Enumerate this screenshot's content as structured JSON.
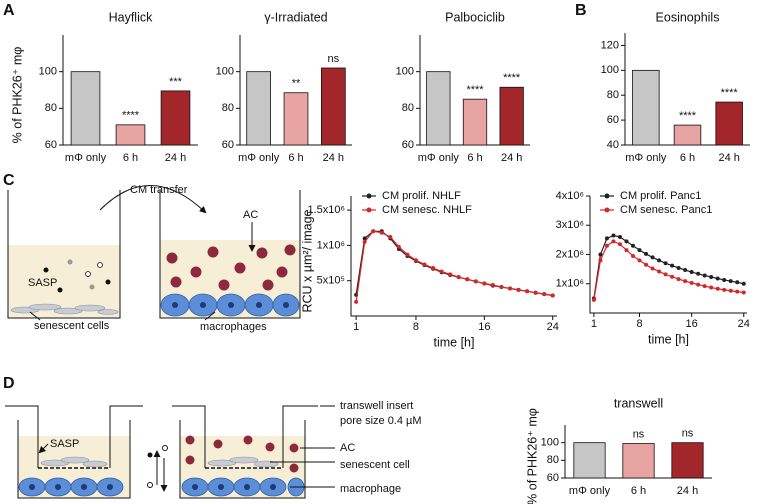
{
  "panel_labels": [
    "A",
    "B",
    "C",
    "D"
  ],
  "diagram_c": {
    "arrow_label": "CM transfer",
    "ac": "AC",
    "sasp": "SASP",
    "senescent": "senescent cells",
    "macrophages": "macrophages"
  },
  "diagram_d": {
    "sasp": "SASP",
    "labels": [
      "transwell insert",
      "pore size 0.4 µM",
      "AC",
      "senescent cell",
      "macrophage"
    ]
  },
  "chart_data": [
    {
      "type": "bar",
      "title": "Hayflick",
      "ylabel": "% of PHK26⁺ mφ",
      "categories": [
        "mΦ only",
        "6 h",
        "24 h"
      ],
      "values": [
        100,
        71,
        89.5
      ],
      "annotations": [
        null,
        "****",
        "***"
      ],
      "colors": [
        "#c6c6c6",
        "#e8a3a3",
        "#a3262a"
      ],
      "ylim": [
        60,
        120
      ],
      "yticks": [
        60,
        80,
        100
      ]
    },
    {
      "type": "bar",
      "title": "γ-Irradiated",
      "categories": [
        "mΦ only",
        "6 h",
        "24 h"
      ],
      "values": [
        100,
        88.5,
        102
      ],
      "annotations": [
        null,
        "**",
        "ns"
      ],
      "colors": [
        "#c6c6c6",
        "#e8a3a3",
        "#a3262a"
      ],
      "ylim": [
        60,
        120
      ],
      "yticks": [
        60,
        80,
        100
      ]
    },
    {
      "type": "bar",
      "title": "Palbociclib",
      "categories": [
        "mΦ only",
        "6 h",
        "24 h"
      ],
      "values": [
        100,
        85,
        91.5
      ],
      "annotations": [
        null,
        "****",
        "****"
      ],
      "colors": [
        "#c6c6c6",
        "#e8a3a3",
        "#a3262a"
      ],
      "ylim": [
        60,
        120
      ],
      "yticks": [
        60,
        80,
        100
      ]
    },
    {
      "type": "bar",
      "title": "Eosinophils",
      "categories": [
        "mΦ only",
        "6 h",
        "24 h"
      ],
      "values": [
        100,
        56,
        74.5
      ],
      "annotations": [
        null,
        "****",
        "****"
      ],
      "colors": [
        "#c6c6c6",
        "#e8a3a3",
        "#a3262a"
      ],
      "ylim": [
        40,
        130
      ],
      "yticks": [
        40,
        60,
        80,
        100,
        120
      ]
    },
    {
      "type": "line",
      "ylabel": "RCU x µm²/ image",
      "xlabel": "time [h]",
      "x": [
        1,
        2,
        3,
        4,
        5,
        6,
        7,
        8,
        9,
        10,
        11,
        12,
        13,
        14,
        15,
        16,
        17,
        18,
        19,
        20,
        21,
        22,
        23,
        24
      ],
      "series": [
        {
          "name": "CM prolif. NHLF",
          "color": "#222222",
          "values": [
            300000,
            1100000,
            1200000,
            1200000,
            1100000,
            950000,
            850000,
            780000,
            720000,
            670000,
            620000,
            580000,
            550000,
            520000,
            490000,
            460000,
            430000,
            410000,
            390000,
            370000,
            350000,
            330000,
            310000,
            290000
          ]
        },
        {
          "name": "CM senesc. NHLF",
          "color": "#d62728",
          "values": [
            200000,
            1050000,
            1200000,
            1180000,
            1120000,
            980000,
            870000,
            790000,
            730000,
            680000,
            630000,
            590000,
            550000,
            520000,
            490000,
            460000,
            440000,
            410000,
            390000,
            370000,
            350000,
            330000,
            310000,
            290000
          ]
        }
      ],
      "xlim": [
        0.4,
        24.5
      ],
      "xticks": [
        1,
        8,
        16,
        24
      ],
      "ylim": [
        0,
        1700000
      ],
      "yticks": [
        {
          "value": 500000,
          "label": "5x10⁵"
        },
        {
          "value": 1000000,
          "label": "1x10⁶"
        },
        {
          "value": 1500000,
          "label": "1.5x10⁶"
        }
      ]
    },
    {
      "type": "line",
      "xlabel": "time [h]",
      "x": [
        1,
        2,
        3,
        4,
        5,
        6,
        7,
        8,
        9,
        10,
        11,
        12,
        13,
        14,
        15,
        16,
        17,
        18,
        19,
        20,
        21,
        22,
        23,
        24
      ],
      "series": [
        {
          "name": "CM prolif. Panc1",
          "color": "#222222",
          "values": [
            500000,
            2000000,
            2550000,
            2650000,
            2600000,
            2450000,
            2300000,
            2150000,
            2020000,
            1900000,
            1800000,
            1700000,
            1620000,
            1540000,
            1470000,
            1400000,
            1340000,
            1280000,
            1230000,
            1180000,
            1130000,
            1090000,
            1050000,
            1000000
          ]
        },
        {
          "name": "CM senesc. Panc1",
          "color": "#d62728",
          "values": [
            450000,
            1800000,
            2300000,
            2450000,
            2350000,
            2150000,
            1950000,
            1800000,
            1650000,
            1520000,
            1420000,
            1320000,
            1240000,
            1160000,
            1090000,
            1030000,
            970000,
            920000,
            870000,
            830000,
            790000,
            760000,
            730000,
            700000
          ]
        }
      ],
      "xlim": [
        0.4,
        24.5
      ],
      "xticks": [
        1,
        8,
        16,
        24
      ],
      "ylim": [
        0,
        4000000
      ],
      "yticks": [
        {
          "value": 1000000,
          "label": "1x10⁶"
        },
        {
          "value": 2000000,
          "label": "2x10⁶"
        },
        {
          "value": 3000000,
          "label": "3x10⁶"
        },
        {
          "value": 4000000,
          "label": "4x10⁶"
        }
      ]
    },
    {
      "type": "bar",
      "title": "transwell",
      "ylabel": "% of PHK26⁺ mφ",
      "categories": [
        "mΦ only",
        "6 h",
        "24 h"
      ],
      "values": [
        100,
        99,
        100
      ],
      "annotations": [
        null,
        "ns",
        "ns"
      ],
      "colors": [
        "#c6c6c6",
        "#e8a3a3",
        "#a3262a"
      ],
      "ylim": [
        60,
        120
      ],
      "yticks": [
        60,
        80,
        100
      ]
    }
  ]
}
